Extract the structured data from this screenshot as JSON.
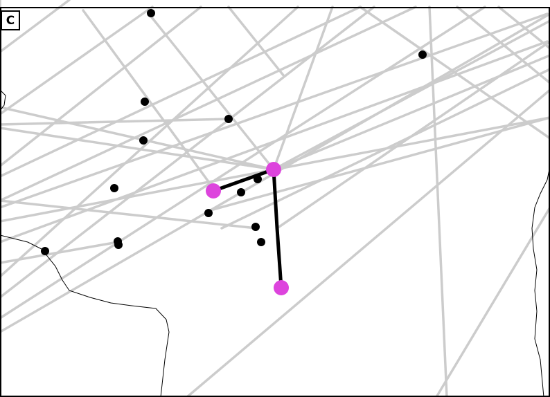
{
  "panel": {
    "label": "C"
  },
  "colors": {
    "background": "#ffffff",
    "route_lines": "#cccccc",
    "coastline": "#000000",
    "stations": "#000000",
    "highlight_nodes": "#dd44dd",
    "highlight_links": "#000000"
  },
  "icons": {
    "station": "filled-circle",
    "highlight_node": "filled-circle"
  },
  "map_layers": [
    "route-lines",
    "coastline",
    "stations",
    "highlighted-path"
  ]
}
